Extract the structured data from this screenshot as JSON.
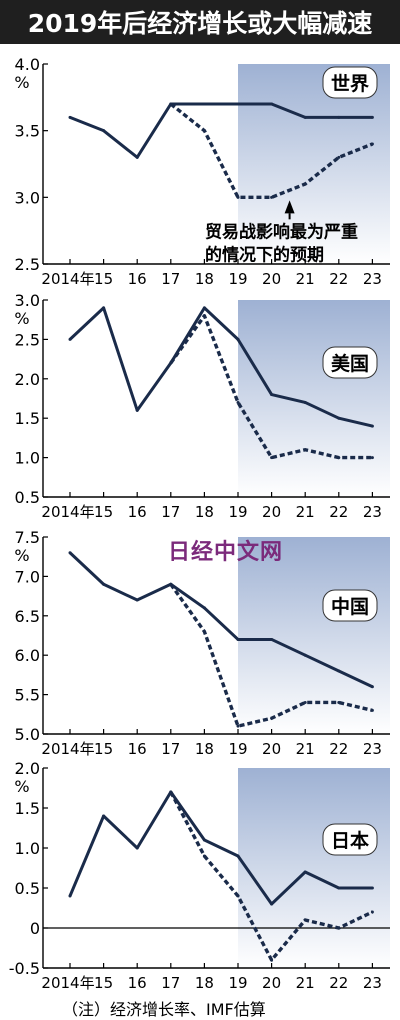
{
  "title": "2019年后经济增长或大幅减速",
  "note": "（注）经济增长率、IMF估算",
  "watermark": "日经中文网",
  "colors": {
    "line": "#1a2b4a",
    "shade_top": "#9eb1d3",
    "shade_bottom": "#ffffff",
    "title_bg": "#1f1f1f"
  },
  "chart_data": [
    {
      "type": "line",
      "title": "世界",
      "unit": "%",
      "x": [
        "2014年",
        "15",
        "16",
        "17",
        "18",
        "19",
        "20",
        "21",
        "22",
        "23"
      ],
      "ylim": [
        2.5,
        4.0
      ],
      "yticks": [
        "2.5",
        "3.0",
        "3.5",
        "4.0"
      ],
      "series": [
        {
          "style": "solid",
          "x": [
            "2014年",
            "15",
            "16",
            "17",
            "18",
            "19",
            "20",
            "21",
            "22",
            "23"
          ],
          "values": [
            3.6,
            3.5,
            3.3,
            3.7,
            3.7,
            3.7,
            3.7,
            3.6,
            3.6,
            3.6
          ]
        },
        {
          "style": "dashed",
          "x": [
            "17",
            "18",
            "19",
            "20",
            "21",
            "22",
            "23"
          ],
          "values": [
            3.7,
            3.5,
            3.0,
            3.0,
            3.1,
            3.3,
            3.4
          ]
        }
      ],
      "annotation": {
        "line1": "贸易战影响最为严重",
        "line2": "的情况下的预期"
      },
      "shaded_from": "19"
    },
    {
      "type": "line",
      "title": "美国",
      "unit": "%",
      "x": [
        "2014年",
        "15",
        "16",
        "17",
        "18",
        "19",
        "20",
        "21",
        "22",
        "23"
      ],
      "ylim": [
        0.5,
        3.0
      ],
      "yticks": [
        "0.5",
        "1.0",
        "1.5",
        "2.0",
        "2.5",
        "3.0"
      ],
      "series": [
        {
          "style": "solid",
          "x": [
            "2014年",
            "15",
            "16",
            "17",
            "18",
            "19",
            "20",
            "21",
            "22",
            "23"
          ],
          "values": [
            2.5,
            2.9,
            1.6,
            2.2,
            2.9,
            2.5,
            1.8,
            1.7,
            1.5,
            1.4
          ]
        },
        {
          "style": "dashed",
          "x": [
            "17",
            "18",
            "19",
            "20",
            "21",
            "22",
            "23"
          ],
          "values": [
            2.2,
            2.8,
            1.7,
            1.0,
            1.1,
            1.0,
            1.0
          ]
        }
      ],
      "shaded_from": "19"
    },
    {
      "type": "line",
      "title": "中国",
      "unit": "%",
      "x": [
        "2014年",
        "15",
        "16",
        "17",
        "18",
        "19",
        "20",
        "21",
        "22",
        "23"
      ],
      "ylim": [
        5.0,
        7.5
      ],
      "yticks": [
        "5.0",
        "5.5",
        "6.0",
        "6.5",
        "7.0",
        "7.5"
      ],
      "series": [
        {
          "style": "solid",
          "x": [
            "2014年",
            "15",
            "16",
            "17",
            "18",
            "19",
            "20",
            "21",
            "22",
            "23"
          ],
          "values": [
            7.3,
            6.9,
            6.7,
            6.9,
            6.6,
            6.2,
            6.2,
            6.0,
            5.8,
            5.6
          ]
        },
        {
          "style": "dashed",
          "x": [
            "17",
            "18",
            "19",
            "20",
            "21",
            "22",
            "23"
          ],
          "values": [
            6.9,
            6.3,
            5.1,
            5.2,
            5.4,
            5.4,
            5.3
          ]
        }
      ],
      "shaded_from": "19"
    },
    {
      "type": "line",
      "title": "日本",
      "unit": "%",
      "x": [
        "2014年",
        "15",
        "16",
        "17",
        "18",
        "19",
        "20",
        "21",
        "22",
        "23"
      ],
      "ylim": [
        -0.5,
        2.0
      ],
      "yticks": [
        "-0.5",
        "0",
        "0.5",
        "1.0",
        "1.5",
        "2.0"
      ],
      "series": [
        {
          "style": "solid",
          "x": [
            "2014年",
            "15",
            "16",
            "17",
            "18",
            "19",
            "20",
            "21",
            "22",
            "23"
          ],
          "values": [
            0.4,
            1.4,
            1.0,
            1.7,
            1.1,
            0.9,
            0.3,
            0.7,
            0.5,
            0.5
          ]
        },
        {
          "style": "dashed",
          "x": [
            "17",
            "18",
            "19",
            "20",
            "21",
            "22",
            "23"
          ],
          "values": [
            1.7,
            0.9,
            0.4,
            -0.4,
            0.1,
            0.0,
            0.2
          ]
        }
      ],
      "zero_line": true,
      "shaded_from": "19"
    }
  ]
}
